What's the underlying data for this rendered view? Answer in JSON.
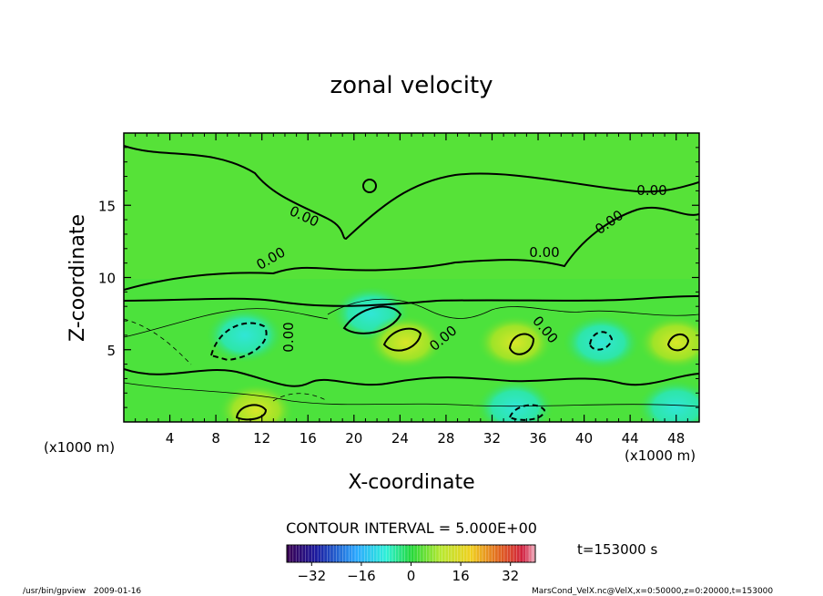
{
  "chart_data": {
    "type": "heatmap",
    "title": "zonal velocity",
    "xlabel": "X-coordinate",
    "ylabel": "Z-coordinate",
    "x_unit_label": "(x1000 m)",
    "z_unit_label": "(x1000 m)",
    "xlim": [
      0,
      50
    ],
    "ylim": [
      0,
      20
    ],
    "x_ticks": [
      4,
      8,
      12,
      16,
      20,
      24,
      28,
      32,
      36,
      40,
      44,
      48
    ],
    "y_ticks": [
      5,
      10,
      15
    ],
    "contour_label": "0.00",
    "contour_interval_label": "CONTOUR INTERVAL = 5.000E+00",
    "time_label": "t=153000 s",
    "colorbar": {
      "min": -40,
      "max": 40,
      "tick_values": [
        -32,
        -16,
        0,
        16,
        32
      ]
    },
    "extrema": [
      {
        "x": 10.5,
        "z": 6.0,
        "sign": "negative"
      },
      {
        "x": 11.5,
        "z": 0.8,
        "sign": "positive"
      },
      {
        "x": 21.5,
        "z": 7.5,
        "sign": "negative"
      },
      {
        "x": 24.5,
        "z": 5.5,
        "sign": "positive"
      },
      {
        "x": 34.0,
        "z": 5.5,
        "sign": "positive"
      },
      {
        "x": 34.0,
        "z": 1.0,
        "sign": "negative"
      },
      {
        "x": 41.5,
        "z": 5.5,
        "sign": "negative"
      },
      {
        "x": 48.0,
        "z": 5.5,
        "sign": "positive"
      },
      {
        "x": 48.0,
        "z": 1.0,
        "sign": "negative"
      }
    ]
  },
  "footer": {
    "left": "/usr/bin/gpview   2009-01-16",
    "right": "MarsCond_VelX.nc@VelX,x=0:50000,z=0:20000,t=153000"
  }
}
